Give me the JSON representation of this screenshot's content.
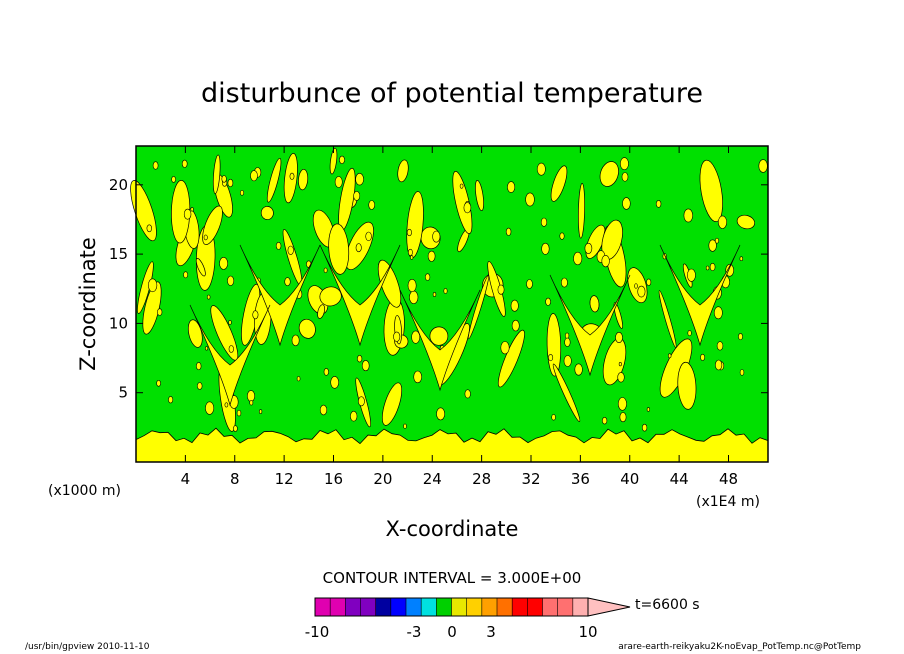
{
  "chart_data": {
    "type": "heatmap",
    "title": "disturbunce of potential temperature",
    "xlabel": "X-coordinate",
    "ylabel": "Z-coordinate",
    "x_unit_left": "(x1000 m)",
    "x_unit_right": "(x1E4 m)",
    "xlim": [
      0,
      51.2
    ],
    "ylim": [
      0,
      22.8
    ],
    "x_ticks": [
      4,
      8,
      12,
      16,
      20,
      24,
      28,
      32,
      36,
      40,
      44,
      48
    ],
    "y_ticks": [
      5,
      10,
      15,
      20
    ],
    "contour_interval_text": "CONTOUR INTERVAL = 3.000E+00",
    "field_summary": {
      "background_level": "green",
      "surface_layer_level": "yellow",
      "dominant_levels": [
        "green",
        "yellow"
      ]
    },
    "colorbar": {
      "colors": [
        "#e000b0",
        "#e000b0",
        "#8000c0",
        "#8000c0",
        "#0000a0",
        "#0000ff",
        "#0080ff",
        "#00e0e0",
        "#00d000",
        "#e8e800",
        "#ffd000",
        "#ffa000",
        "#ff7000",
        "#ff0000",
        "#ff0000",
        "#ff7070",
        "#ff7070",
        "#ffb0b0"
      ],
      "tick_labels": [
        "-10",
        "-3",
        "0",
        "3",
        "10"
      ],
      "time_label": "t=6600 s"
    },
    "colors": {
      "green": "#00e000",
      "yellow": "#ffff00"
    }
  },
  "footer": {
    "left": "/usr/bin/gpview   2010-11-10",
    "right": "arare-earth-reikyaku2K-noEvap_PotTemp.nc@PotTemp"
  }
}
